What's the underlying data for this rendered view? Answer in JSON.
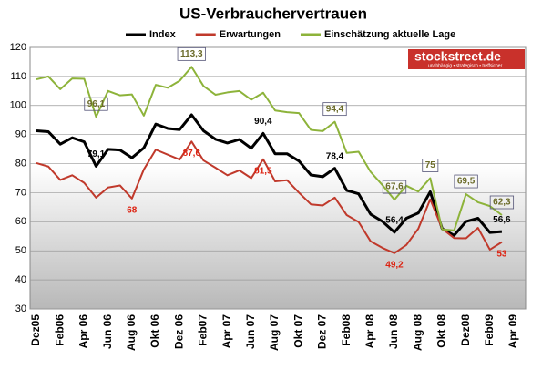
{
  "chart_data": {
    "type": "line",
    "title": "US-Verbrauchervertrauen",
    "categories": [
      "Dez05",
      null,
      "Feb06",
      null,
      "Apr 06",
      null,
      "Jun 06",
      null,
      "Aug 06",
      null,
      "Okt 06",
      null,
      "Dez 06",
      null,
      "Feb07",
      null,
      "Apr 07",
      null,
      "Jun 07",
      null,
      "Aug 07",
      null,
      "Okt 07",
      null,
      "Dez 07",
      null,
      "Feb08",
      null,
      "Apr 08",
      null,
      "Jun 08",
      null,
      "Aug 08",
      null,
      "Okt 08",
      null,
      "Dez08",
      null,
      "Feb09",
      null,
      "Apr 09"
    ],
    "series": [
      {
        "name": "Index",
        "color": "#000000",
        "values": [
          91.3,
          91,
          86.7,
          88.9,
          87.5,
          79.1,
          84.9,
          84.7,
          82,
          85.4,
          93.6,
          92.1,
          91.7,
          96.8,
          91.3,
          88.4,
          87.1,
          88.3,
          85.3,
          90.4,
          83.4,
          83.4,
          80.9,
          76.1,
          75.5,
          78.4,
          70.8,
          69.6,
          62.6,
          60.1,
          56.4,
          61.2,
          63,
          70.3,
          57.6,
          55.3,
          60.1,
          61.2,
          56.3,
          56.6,
          null
        ],
        "value_labels": [
          null,
          null,
          null,
          null,
          null,
          "79,1",
          null,
          null,
          null,
          null,
          null,
          null,
          null,
          null,
          null,
          null,
          null,
          null,
          null,
          "90,4",
          null,
          null,
          null,
          null,
          null,
          "78,4",
          null,
          null,
          null,
          null,
          "56,4",
          null,
          null,
          null,
          null,
          null,
          null,
          null,
          null,
          "56,6",
          null
        ]
      },
      {
        "name": "Erwartungen",
        "color": "#c0392b",
        "values": [
          80.2,
          79,
          74.4,
          76,
          73.4,
          68.3,
          71.8,
          72.5,
          68,
          78,
          84.8,
          83.1,
          81.4,
          87.6,
          81.1,
          78.6,
          76,
          77.7,
          75,
          81.5,
          73.9,
          74.3,
          70,
          66,
          65.6,
          68.3,
          62.3,
          59.9,
          53.3,
          51,
          49.2,
          52,
          57.6,
          67.7,
          57.6,
          54.4,
          54.3,
          57.9,
          50.4,
          53,
          null
        ],
        "value_labels": [
          null,
          null,
          null,
          null,
          null,
          null,
          null,
          null,
          "68",
          null,
          null,
          null,
          null,
          "87,6",
          null,
          null,
          null,
          null,
          null,
          "81,5",
          null,
          null,
          null,
          null,
          null,
          null,
          null,
          null,
          null,
          null,
          "49,2",
          null,
          null,
          null,
          null,
          null,
          null,
          null,
          null,
          "53",
          null
        ]
      },
      {
        "name": "Einschätzung aktuelle Lage",
        "color": "#8db33a",
        "values": [
          109,
          110,
          105.6,
          109.3,
          109.2,
          96.1,
          105,
          103.5,
          103.8,
          96.5,
          107.1,
          106.1,
          108.5,
          113.3,
          106.7,
          103.7,
          104.5,
          105,
          102,
          104.4,
          98.3,
          97.7,
          97.4,
          91.6,
          91.2,
          94.4,
          83.7,
          84.1,
          77.2,
          72.6,
          67.6,
          72.4,
          70.4,
          75,
          57.4,
          57,
          69.5,
          66.7,
          65.4,
          62.3,
          null
        ],
        "value_labels": [
          null,
          null,
          null,
          null,
          null,
          "96,1",
          null,
          null,
          null,
          null,
          null,
          null,
          null,
          "113,3",
          null,
          null,
          null,
          null,
          null,
          null,
          null,
          null,
          null,
          null,
          null,
          "94,4",
          null,
          null,
          null,
          null,
          "67,6",
          null,
          null,
          "75",
          null,
          null,
          "69,5",
          null,
          null,
          "62,3",
          null
        ]
      }
    ],
    "ylim": [
      30,
      120
    ],
    "yticks": [
      30,
      40,
      50,
      60,
      70,
      80,
      90,
      100,
      110,
      120
    ],
    "grid": true,
    "legend": "top"
  },
  "logo": {
    "name": "stockstreet.de",
    "slogan": "unabhängig • strategisch • treffsicher"
  }
}
